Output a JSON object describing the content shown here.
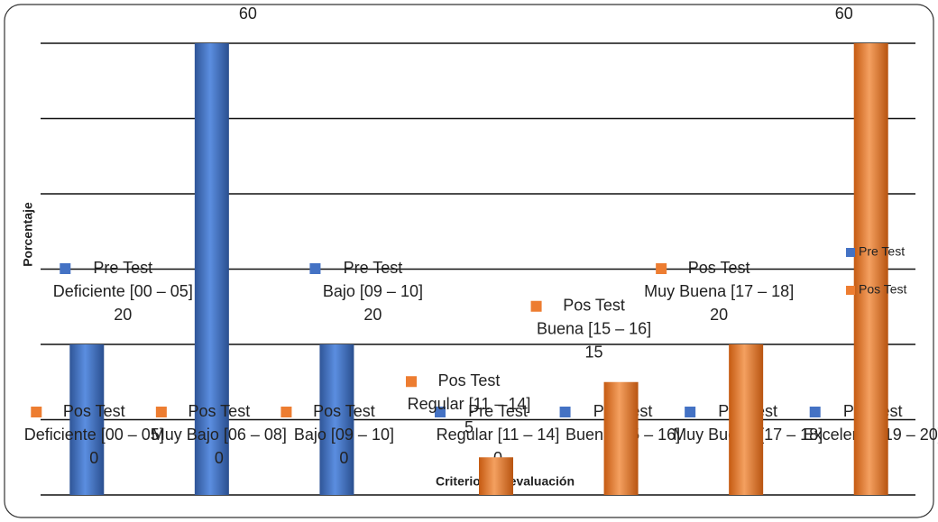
{
  "chart_data": {
    "type": "bar",
    "x_label": "Criterios de evaluación",
    "y_label": "Porcentaje",
    "categories": [
      "Deficiente [00 – 05]",
      "Muy Bajo [06 – 08]",
      "Bajo [09 – 10]",
      "Regular [11 – 14]",
      "Buena [15 – 16]",
      "Muy Buena [17 – 18]",
      "Excelente [19 – 20]"
    ],
    "series": [
      {
        "name": "Pre Test",
        "color": "#4472c4",
        "values": [
          20,
          60,
          20,
          0,
          0,
          0,
          0
        ]
      },
      {
        "name": "Pos Test",
        "color": "#ed7d31",
        "values": [
          0,
          0,
          0,
          5,
          15,
          20,
          60
        ]
      }
    ],
    "ylim": [
      0,
      60
    ],
    "yticks": [
      0,
      10,
      20,
      30,
      40,
      50,
      60
    ],
    "grid": true,
    "legend": "right"
  }
}
